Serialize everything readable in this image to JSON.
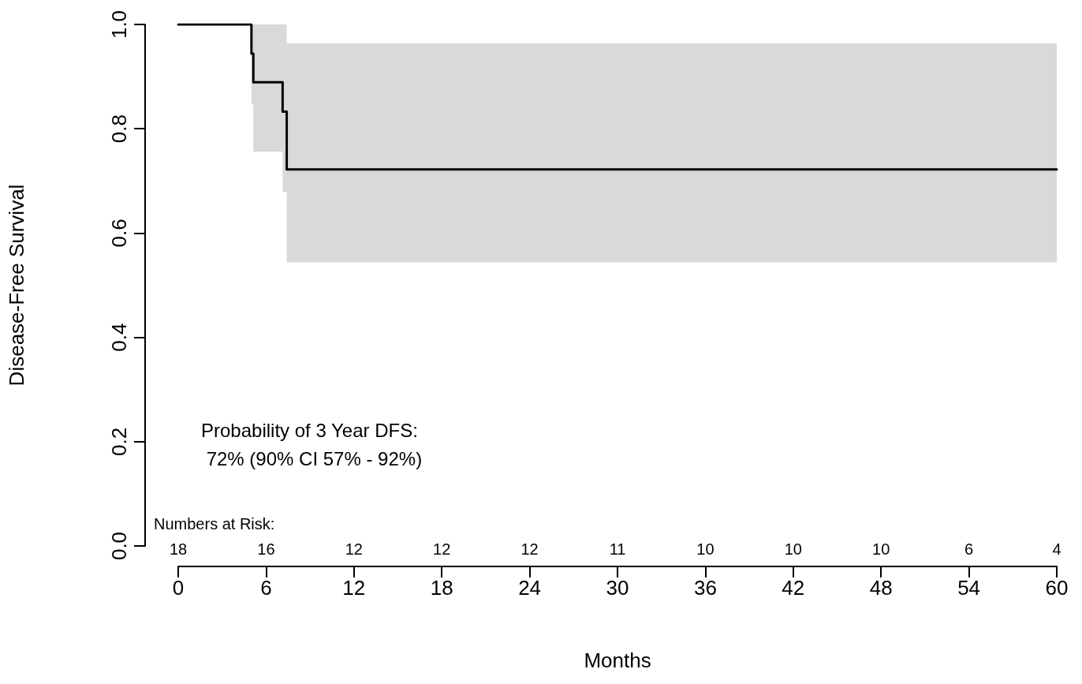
{
  "chart_data": {
    "type": "step",
    "xlabel": "Months",
    "ylabel": "Disease-Free Survival",
    "x": [
      0,
      5.0,
      5.13,
      7.13,
      7.41,
      60
    ],
    "series": [
      {
        "color": "#000000",
        "values": [
          1,
          0.944,
          0.889,
          0.833,
          0.722,
          0.722
        ],
        "lower": [
          1,
          0.847,
          0.756,
          0.679,
          0.544,
          0.544
        ],
        "upper": [
          1,
          1,
          1,
          1,
          0.964,
          0.964
        ]
      }
    ],
    "xlim": [
      0,
      60
    ],
    "xticks": [
      0,
      6,
      12,
      18,
      24,
      30,
      36,
      42,
      48,
      54,
      60
    ],
    "ylim": [
      0,
      1
    ],
    "yticks": [
      {
        "value": 0,
        "label": "0.0"
      },
      {
        "value": 0.2,
        "label": "0.2"
      },
      {
        "value": 0.4,
        "label": "0.4"
      },
      {
        "value": 0.6,
        "label": "0.6"
      },
      {
        "value": 0.8,
        "label": "0.8"
      },
      {
        "value": 1,
        "label": "1.0"
      }
    ],
    "grid": false,
    "marker": "none",
    "line_style": "solid",
    "annotations": [
      "Probability of 3 Year DFS:",
      " 72% (90% CI 57% - 92%)",
      "Numbers at Risk:",
      "18",
      "16",
      "12",
      "12",
      "12",
      "11",
      "10",
      "10",
      "10",
      "6",
      "4"
    ]
  }
}
